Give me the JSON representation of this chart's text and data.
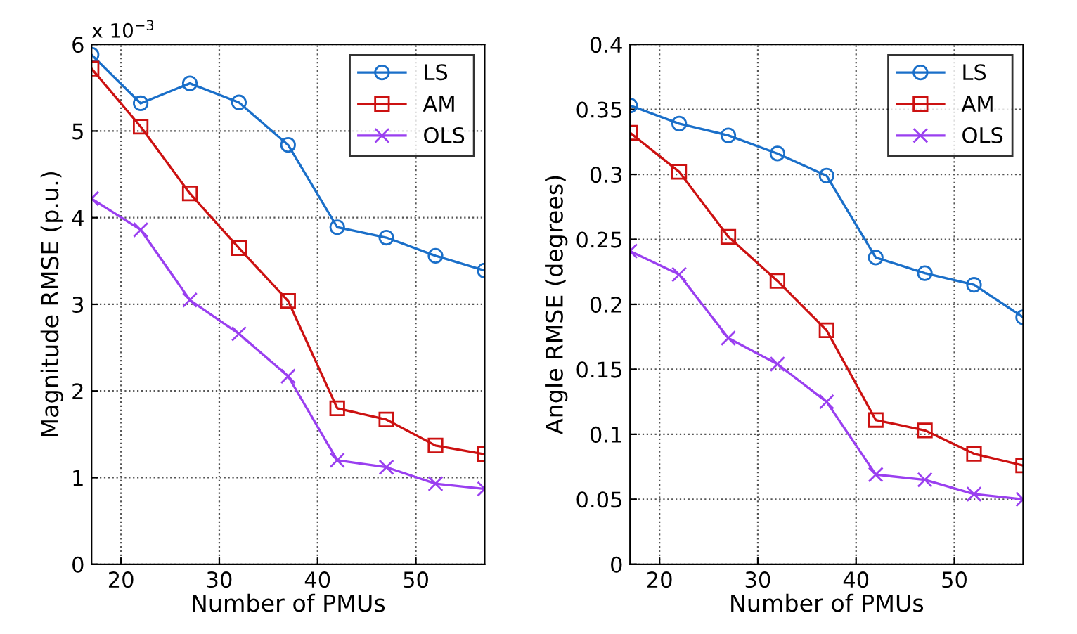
{
  "chart_data": [
    {
      "type": "line",
      "xlabel": "Number of PMUs",
      "ylabel": "Magnitude RMSE (p.u.)",
      "annotations": [
        "x 10$^{−3}$"
      ],
      "x": [
        17,
        22,
        27,
        32,
        37,
        42,
        47,
        52,
        57
      ],
      "xlim": [
        17,
        57
      ],
      "xticks": [
        20,
        30,
        40,
        50
      ],
      "ylim": [
        0,
        6
      ],
      "yticks": [
        0,
        1,
        2,
        3,
        4,
        5,
        6
      ],
      "grid": true,
      "legend": "top right",
      "line_style": "solid",
      "series": [
        {
          "name": "LS",
          "color": "#1a6fc9",
          "marker": "circle",
          "values": [
            5.88,
            5.32,
            5.55,
            5.33,
            4.84,
            3.89,
            3.77,
            3.56,
            3.39
          ]
        },
        {
          "name": "AM",
          "color": "#cc1111",
          "marker": "square",
          "values": [
            5.72,
            5.05,
            4.28,
            3.65,
            3.04,
            1.8,
            1.67,
            1.37,
            1.27
          ]
        },
        {
          "name": "OLS",
          "color": "#9a3ff0",
          "marker": "cross",
          "values": [
            4.22,
            3.86,
            3.05,
            2.66,
            2.17,
            1.2,
            1.12,
            0.93,
            0.87
          ]
        }
      ]
    },
    {
      "type": "line",
      "xlabel": "Number of PMUs",
      "ylabel": "Angle RMSE (degrees)",
      "x": [
        17,
        22,
        27,
        32,
        37,
        42,
        47,
        52,
        57
      ],
      "xlim": [
        17,
        57
      ],
      "xticks": [
        20,
        30,
        40,
        50
      ],
      "ylim": [
        0,
        0.4
      ],
      "yticks": [
        0,
        0.05,
        0.1,
        0.15,
        0.2,
        0.25,
        0.3,
        0.35,
        0.4
      ],
      "grid": true,
      "legend": "top right",
      "line_style": "solid",
      "series": [
        {
          "name": "LS",
          "color": "#1a6fc9",
          "marker": "circle",
          "values": [
            0.353,
            0.339,
            0.33,
            0.316,
            0.299,
            0.236,
            0.224,
            0.215,
            0.19
          ]
        },
        {
          "name": "AM",
          "color": "#cc1111",
          "marker": "square",
          "values": [
            0.332,
            0.302,
            0.252,
            0.218,
            0.18,
            0.111,
            0.103,
            0.085,
            0.076
          ]
        },
        {
          "name": "OLS",
          "color": "#9a3ff0",
          "marker": "cross",
          "values": [
            0.241,
            0.223,
            0.174,
            0.154,
            0.125,
            0.069,
            0.065,
            0.054,
            0.05
          ]
        }
      ]
    }
  ]
}
